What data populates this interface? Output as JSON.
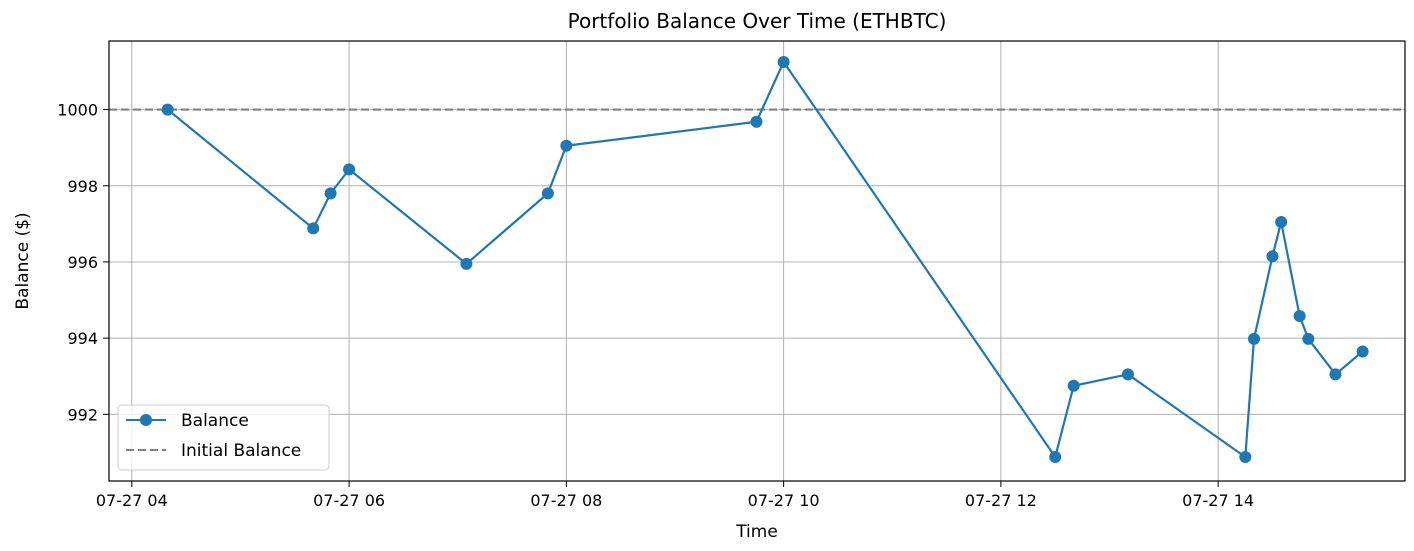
{
  "chart_data": {
    "type": "line",
    "title": "Portfolio Balance Over Time (ETHBTC)",
    "xlabel": "Time",
    "ylabel": "Balance ($)",
    "x_tick_labels": [
      "07-27 04",
      "07-27 06",
      "07-27 08",
      "07-27 10",
      "07-27 12",
      "07-27 14"
    ],
    "x_ticks_hours": [
      4,
      6,
      8,
      10,
      12,
      14
    ],
    "y_ticks": [
      992,
      994,
      996,
      998,
      1000
    ],
    "xlim_hours": [
      3.79,
      15.72
    ],
    "ylim": [
      990.25,
      1001.8
    ],
    "grid": true,
    "legend_position": "lower-left",
    "series": [
      {
        "name": "Balance",
        "style": "line-with-markers",
        "color": "#1f77b4",
        "points": [
          {
            "t": "07-27 04:20",
            "h": 4.33,
            "y": 1000.0
          },
          {
            "t": "07-27 05:40",
            "h": 5.67,
            "y": 996.88
          },
          {
            "t": "07-27 05:50",
            "h": 5.83,
            "y": 997.8
          },
          {
            "t": "07-27 06:00",
            "h": 6.0,
            "y": 998.43
          },
          {
            "t": "07-27 07:05",
            "h": 7.08,
            "y": 995.95
          },
          {
            "t": "07-27 07:50",
            "h": 7.83,
            "y": 997.8
          },
          {
            "t": "07-27 08:00",
            "h": 8.0,
            "y": 999.05
          },
          {
            "t": "07-27 09:45",
            "h": 9.75,
            "y": 999.68
          },
          {
            "t": "07-27 10:00",
            "h": 10.0,
            "y": 1001.25
          },
          {
            "t": "07-27 12:30",
            "h": 12.5,
            "y": 990.88
          },
          {
            "t": "07-27 12:40",
            "h": 12.67,
            "y": 992.75
          },
          {
            "t": "07-27 13:10",
            "h": 13.17,
            "y": 993.05
          },
          {
            "t": "07-27 14:15",
            "h": 14.25,
            "y": 990.88
          },
          {
            "t": "07-27 14:20",
            "h": 14.33,
            "y": 993.98
          },
          {
            "t": "07-27 14:30",
            "h": 14.5,
            "y": 996.15
          },
          {
            "t": "07-27 14:35",
            "h": 14.58,
            "y": 997.05
          },
          {
            "t": "07-27 14:45",
            "h": 14.75,
            "y": 994.58
          },
          {
            "t": "07-27 14:50",
            "h": 14.83,
            "y": 993.98
          },
          {
            "t": "07-27 15:05",
            "h": 15.08,
            "y": 993.05
          },
          {
            "t": "07-27 15:20",
            "h": 15.33,
            "y": 993.65
          }
        ]
      },
      {
        "name": "Initial Balance",
        "style": "dashed-horizontal",
        "color": "#808080",
        "y": 1000
      }
    ]
  }
}
